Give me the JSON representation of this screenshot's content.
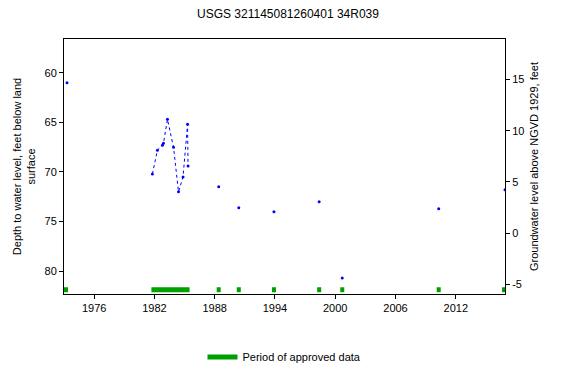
{
  "chart_data": {
    "type": "line",
    "title": "USGS 321145081260401 34R039",
    "y_label": [
      "Depth to water level, feet below land",
      "surface"
    ],
    "y2_label": "Groundwater level above NGVD 1929, feet",
    "x": [
      1973.3,
      null,
      1981.8,
      1982.3,
      1982.8,
      1982.9,
      1983.3,
      1983.9,
      1984.4,
      1984.85,
      1985.3,
      1985.35,
      null,
      1988.4,
      null,
      1990.4,
      null,
      1993.9,
      null,
      1998.4,
      null,
      2000.7,
      null,
      2010.3,
      null,
      2016.9
    ],
    "values": [
      61.0,
      null,
      70.2,
      67.8,
      67.3,
      67.1,
      64.7,
      67.5,
      72.0,
      70.5,
      65.2,
      69.4,
      null,
      71.5,
      null,
      73.6,
      null,
      74.0,
      null,
      73.0,
      null,
      80.7,
      null,
      73.7,
      null,
      71.8
    ],
    "color": "#0000ff",
    "marker": "circle",
    "line_style": "dot",
    "xlim": [
      1973.0,
      2016.9
    ],
    "xticks": [
      1976,
      1982,
      1988,
      1994,
      2000,
      2006,
      2012
    ],
    "ylim": [
      82.3,
      56.6
    ],
    "yticks": [
      60,
      65,
      70,
      75,
      80
    ],
    "y2lim": [
      -5.95,
      18.97
    ],
    "y2ticks": [
      -5,
      0,
      5,
      10,
      15
    ],
    "grid": false,
    "legend": "bottom",
    "approved_data": {
      "name": "Period of approved data",
      "color": "#00a000",
      "periods": [
        [
          1973.0,
          1973.4
        ],
        [
          1981.7,
          1985.5
        ],
        [
          1988.2,
          1988.6
        ],
        [
          1990.2,
          1990.6
        ],
        [
          1993.7,
          1994.1
        ],
        [
          1998.2,
          1998.6
        ],
        [
          2000.5,
          2000.9
        ],
        [
          2010.1,
          2010.5
        ],
        [
          2016.6,
          2016.9
        ]
      ]
    }
  }
}
